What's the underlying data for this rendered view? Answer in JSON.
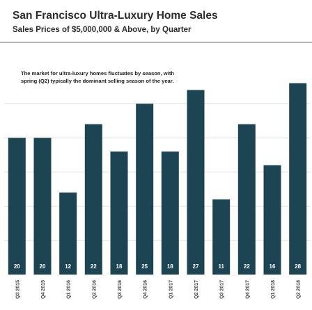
{
  "title": "San Francisco Ultra-Luxury Home Sales",
  "subtitle": "Sales Prices of $5,000,000 & Above, by Quarter",
  "annotation": "The market for ultra-luxury homes fluctuates by season, with spring (Q2) typically the dominant selling season of the year.",
  "colors": {
    "bar": "#1c4452",
    "label_text": "#ffffff",
    "gridline": "#dcdcdc",
    "tick_text": "#404040"
  },
  "chart_data": {
    "type": "bar",
    "categories": [
      "Q3 2015",
      "Q4 2015",
      "Q1 2016",
      "Q2 2016",
      "Q3 2016",
      "Q4 2016",
      "Q1 2017",
      "Q2 2017",
      "Q3 2017",
      "Q4 2017",
      "Q1 2018",
      "Q2 2018"
    ],
    "values": [
      20,
      20,
      12,
      22,
      18,
      25,
      18,
      27,
      11,
      22,
      16,
      28
    ],
    "title": "San Francisco Ultra-Luxury Home Sales",
    "subtitle": "Sales Prices of $5,000,000 & Above, by Quarter",
    "ylim": [
      0,
      30
    ],
    "grid": true,
    "data_labels": "inside-base"
  }
}
